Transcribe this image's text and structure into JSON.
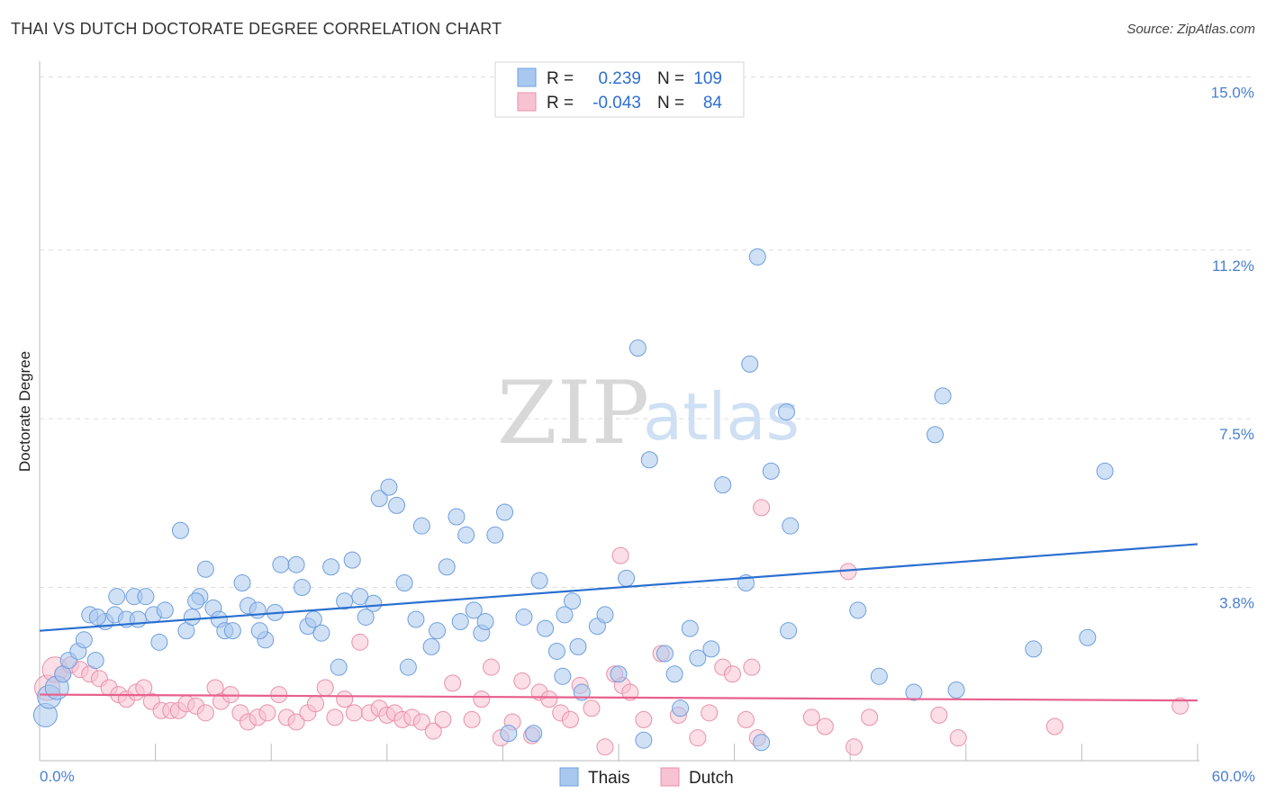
{
  "header": {
    "title": "THAI VS DUTCH DOCTORATE DEGREE CORRELATION CHART",
    "source": "Source: ZipAtlas.com"
  },
  "watermark": {
    "zip": "ZIP",
    "atlas": "atlas"
  },
  "stats_box": {
    "rows": [
      {
        "r_label": "R =",
        "r_value": "0.239",
        "n_label": "N =",
        "n_value": "109",
        "color": "#a9c8ef"
      },
      {
        "r_label": "R =",
        "r_value": "-0.043",
        "n_label": "N =",
        "n_value": "84",
        "color": "#f7b8cb"
      }
    ]
  },
  "colors": {
    "thais_fill": "#a9c8ef",
    "thais_stroke": "#6f9fdc",
    "thais_line": "#2a6fd0",
    "dutch_fill": "#f7c2d2",
    "dutch_stroke": "#e890ab",
    "dutch_line": "#e8608c",
    "grid": "#dddddd",
    "tick_text": "#4a7fd0"
  },
  "chart_data": {
    "type": "scatter",
    "title": "THAI VS DUTCH DOCTORATE DEGREE CORRELATION CHART",
    "xlabel": "",
    "ylabel": "Doctorate Degree",
    "xlim": [
      0,
      60
    ],
    "ylim": [
      0,
      15.5
    ],
    "x_tick_labels": [
      "0.0%",
      "60.0%"
    ],
    "y_ticks": [
      3.8,
      7.5,
      11.2,
      15.0
    ],
    "y_tick_labels": [
      "3.8%",
      "7.5%",
      "11.2%",
      "15.0%"
    ],
    "grid": true,
    "legend_position": "bottom-center",
    "series": [
      {
        "name": "Thais",
        "r": 0.239,
        "n": 109,
        "trend": {
          "x": [
            0,
            60
          ],
          "y": [
            2.85,
            4.75
          ]
        },
        "points": [
          [
            0.3,
            1.0
          ],
          [
            0.5,
            1.4
          ],
          [
            0.9,
            1.6
          ],
          [
            1.2,
            1.9
          ],
          [
            1.5,
            2.2
          ],
          [
            2.0,
            2.4
          ],
          [
            2.3,
            2.65
          ],
          [
            2.9,
            2.2
          ],
          [
            2.6,
            3.2
          ],
          [
            3.4,
            3.05
          ],
          [
            3.9,
            3.2
          ],
          [
            4.0,
            3.6
          ],
          [
            4.5,
            3.1
          ],
          [
            4.9,
            3.6
          ],
          [
            5.1,
            3.1
          ],
          [
            5.5,
            3.6
          ],
          [
            5.9,
            3.2
          ],
          [
            6.2,
            2.6
          ],
          [
            6.5,
            3.3
          ],
          [
            7.3,
            5.05
          ],
          [
            7.6,
            2.85
          ],
          [
            7.9,
            3.15
          ],
          [
            8.3,
            3.6
          ],
          [
            8.6,
            4.2
          ],
          [
            9.0,
            3.35
          ],
          [
            9.3,
            3.1
          ],
          [
            9.6,
            2.85
          ],
          [
            10.0,
            2.85
          ],
          [
            10.5,
            3.9
          ],
          [
            10.8,
            3.4
          ],
          [
            11.3,
            3.3
          ],
          [
            11.7,
            2.65
          ],
          [
            12.2,
            3.25
          ],
          [
            12.5,
            4.3
          ],
          [
            13.3,
            4.3
          ],
          [
            13.6,
            3.8
          ],
          [
            13.9,
            2.95
          ],
          [
            14.2,
            3.1
          ],
          [
            14.6,
            2.8
          ],
          [
            15.1,
            4.25
          ],
          [
            15.5,
            2.05
          ],
          [
            15.8,
            3.5
          ],
          [
            16.2,
            4.4
          ],
          [
            16.6,
            3.6
          ],
          [
            16.9,
            3.15
          ],
          [
            17.3,
            3.45
          ],
          [
            17.6,
            5.75
          ],
          [
            18.1,
            6.0
          ],
          [
            18.5,
            5.6
          ],
          [
            18.9,
            3.9
          ],
          [
            19.1,
            2.05
          ],
          [
            19.5,
            3.1
          ],
          [
            19.8,
            5.15
          ],
          [
            20.3,
            2.5
          ],
          [
            20.6,
            2.85
          ],
          [
            21.1,
            4.25
          ],
          [
            21.6,
            5.35
          ],
          [
            22.1,
            4.95
          ],
          [
            22.5,
            3.3
          ],
          [
            22.9,
            2.8
          ],
          [
            23.1,
            3.05
          ],
          [
            23.6,
            4.95
          ],
          [
            24.1,
            5.45
          ],
          [
            24.3,
            0.6
          ],
          [
            25.1,
            3.15
          ],
          [
            25.6,
            0.6
          ],
          [
            25.9,
            3.95
          ],
          [
            26.2,
            2.9
          ],
          [
            26.8,
            2.4
          ],
          [
            27.1,
            1.85
          ],
          [
            27.6,
            3.5
          ],
          [
            27.9,
            2.5
          ],
          [
            28.1,
            1.5
          ],
          [
            28.9,
            2.95
          ],
          [
            29.3,
            3.2
          ],
          [
            30.0,
            1.9
          ],
          [
            30.4,
            4.0
          ],
          [
            31.0,
            9.05
          ],
          [
            31.3,
            0.45
          ],
          [
            31.6,
            6.6
          ],
          [
            32.4,
            2.35
          ],
          [
            32.9,
            1.9
          ],
          [
            33.2,
            1.15
          ],
          [
            33.7,
            2.9
          ],
          [
            34.1,
            2.25
          ],
          [
            34.8,
            2.45
          ],
          [
            35.4,
            6.05
          ],
          [
            36.6,
            3.9
          ],
          [
            36.8,
            8.7
          ],
          [
            37.2,
            11.05
          ],
          [
            37.4,
            0.4
          ],
          [
            37.9,
            6.35
          ],
          [
            38.7,
            7.65
          ],
          [
            38.9,
            5.15
          ],
          [
            38.8,
            2.85
          ],
          [
            42.4,
            3.3
          ],
          [
            43.5,
            1.85
          ],
          [
            45.3,
            1.5
          ],
          [
            46.4,
            7.15
          ],
          [
            46.8,
            8.0
          ],
          [
            47.5,
            1.55
          ],
          [
            51.5,
            2.45
          ],
          [
            54.3,
            2.7
          ],
          [
            55.2,
            6.35
          ],
          [
            3.0,
            3.15
          ],
          [
            8.1,
            3.5
          ],
          [
            11.4,
            2.85
          ],
          [
            27.2,
            3.2
          ],
          [
            21.8,
            3.05
          ]
        ]
      },
      {
        "name": "Dutch",
        "r": -0.043,
        "n": 84,
        "trend": {
          "x": [
            0,
            60
          ],
          "y": [
            1.45,
            1.32
          ]
        },
        "points": [
          [
            0.4,
            1.6
          ],
          [
            0.8,
            2.0
          ],
          [
            1.2,
            1.9
          ],
          [
            1.6,
            2.1
          ],
          [
            2.1,
            2.0
          ],
          [
            2.6,
            1.9
          ],
          [
            3.1,
            1.8
          ],
          [
            3.6,
            1.6
          ],
          [
            4.1,
            1.45
          ],
          [
            4.5,
            1.35
          ],
          [
            5.0,
            1.5
          ],
          [
            5.4,
            1.6
          ],
          [
            5.8,
            1.3
          ],
          [
            6.3,
            1.1
          ],
          [
            6.8,
            1.1
          ],
          [
            7.2,
            1.1
          ],
          [
            7.6,
            1.25
          ],
          [
            8.1,
            1.2
          ],
          [
            8.6,
            1.05
          ],
          [
            9.1,
            1.6
          ],
          [
            9.4,
            1.3
          ],
          [
            9.9,
            1.45
          ],
          [
            10.4,
            1.05
          ],
          [
            10.8,
            0.85
          ],
          [
            11.3,
            0.95
          ],
          [
            11.8,
            1.05
          ],
          [
            12.4,
            1.45
          ],
          [
            12.8,
            0.95
          ],
          [
            13.3,
            0.85
          ],
          [
            13.9,
            1.05
          ],
          [
            14.3,
            1.25
          ],
          [
            14.8,
            1.6
          ],
          [
            15.3,
            0.95
          ],
          [
            15.8,
            1.35
          ],
          [
            16.3,
            1.05
          ],
          [
            16.6,
            2.6
          ],
          [
            17.1,
            1.05
          ],
          [
            17.6,
            1.15
          ],
          [
            18.0,
            1.0
          ],
          [
            18.4,
            1.05
          ],
          [
            18.8,
            0.9
          ],
          [
            19.3,
            0.95
          ],
          [
            19.8,
            0.85
          ],
          [
            20.4,
            0.65
          ],
          [
            20.9,
            0.9
          ],
          [
            21.4,
            1.7
          ],
          [
            22.4,
            0.9
          ],
          [
            22.9,
            1.35
          ],
          [
            23.4,
            2.05
          ],
          [
            23.9,
            0.5
          ],
          [
            24.5,
            0.85
          ],
          [
            25.0,
            1.75
          ],
          [
            25.5,
            0.55
          ],
          [
            25.9,
            1.5
          ],
          [
            26.4,
            1.35
          ],
          [
            27.0,
            1.05
          ],
          [
            27.5,
            0.9
          ],
          [
            28.0,
            1.65
          ],
          [
            28.6,
            1.15
          ],
          [
            29.3,
            0.3
          ],
          [
            29.8,
            1.9
          ],
          [
            30.2,
            1.65
          ],
          [
            30.6,
            1.5
          ],
          [
            30.1,
            4.5
          ],
          [
            31.3,
            0.9
          ],
          [
            32.2,
            2.35
          ],
          [
            33.1,
            1.0
          ],
          [
            34.1,
            0.5
          ],
          [
            34.7,
            1.05
          ],
          [
            35.4,
            2.05
          ],
          [
            35.9,
            1.9
          ],
          [
            36.6,
            0.9
          ],
          [
            36.9,
            2.05
          ],
          [
            37.2,
            0.5
          ],
          [
            37.4,
            5.55
          ],
          [
            40.0,
            0.95
          ],
          [
            40.7,
            0.75
          ],
          [
            41.9,
            4.15
          ],
          [
            42.2,
            0.3
          ],
          [
            43.0,
            0.95
          ],
          [
            46.6,
            1.0
          ],
          [
            47.6,
            0.5
          ],
          [
            52.6,
            0.75
          ],
          [
            59.1,
            1.2
          ]
        ]
      }
    ]
  },
  "legend": {
    "items": [
      {
        "label": "Thais",
        "color": "#a9c8ef"
      },
      {
        "label": "Dutch",
        "color": "#f7c2d2"
      }
    ]
  }
}
